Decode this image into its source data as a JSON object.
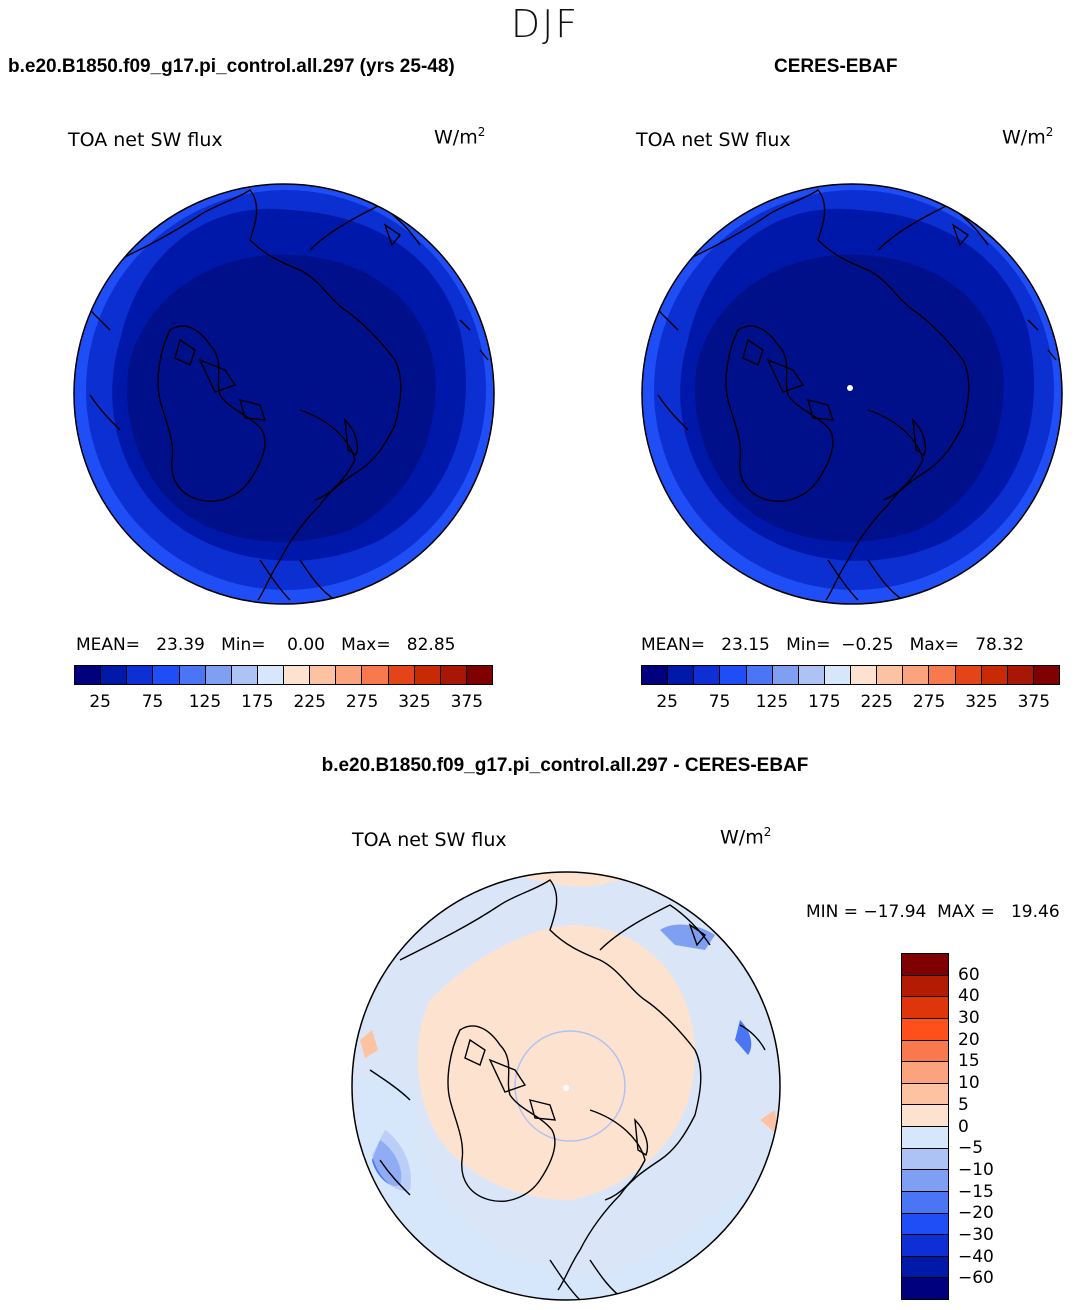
{
  "season": "DJF",
  "panels": {
    "model": {
      "case_title": "b.e20.B1850.f09_g17.pi_control.all.297 (yrs 25-48)",
      "variable": "TOA net SW flux",
      "units_base": "W/m",
      "units_exp": "2",
      "stats": "MEAN=   23.39   Min=    0.00   Max=   82.85"
    },
    "obs": {
      "case_title": "CERES-EBAF",
      "variable": "TOA net SW flux",
      "units_base": "W/m",
      "units_exp": "2",
      "stats": "MEAN=   23.15   Min=  −0.25   Max=   78.32"
    },
    "diff": {
      "case_title": "b.e20.B1850.f09_g17.pi_control.all.297 - CERES-EBAF",
      "variable": "TOA net SW flux",
      "units_base": "W/m",
      "units_exp": "2",
      "stats": "MIN = −17.94  MAX =   19.46"
    }
  },
  "colorbar_abs": {
    "colors": [
      "#00007f",
      "#0019a8",
      "#0d2fd4",
      "#1f4ef7",
      "#4a76f5",
      "#7e9ff2",
      "#aec3f5",
      "#d6e6fb",
      "#fde3cf",
      "#fcc2a2",
      "#fba37c",
      "#f7794c",
      "#e34418",
      "#c72a05",
      "#a81705",
      "#7f0000"
    ],
    "labels": [
      "25",
      "75",
      "125",
      "175",
      "225",
      "275",
      "325",
      "375"
    ]
  },
  "colorbar_diff": {
    "colors": [
      "#7f0000",
      "#b31b03",
      "#e0340a",
      "#ff4f1a",
      "#f7794c",
      "#fba37c",
      "#fcc2a2",
      "#fde3cf",
      "#d6e6fb",
      "#aec3f5",
      "#7e9ff2",
      "#4a76f5",
      "#1f4ef7",
      "#0d2fd4",
      "#0019a8",
      "#00007f"
    ],
    "labels": [
      "60",
      "40",
      "30",
      "20",
      "15",
      "10",
      "5",
      "0",
      "−5",
      "−10",
      "−15",
      "−20",
      "−30",
      "−40",
      "−60"
    ]
  },
  "map_colors": {
    "abs_inner": "#00108a",
    "abs_mid": "#0018aa",
    "abs_outer": "#0c2fd2",
    "abs_edge": "#1f4ef7",
    "diff_base": "#fde3cf",
    "diff_neg": "#d6e6fb",
    "diff_neg2": "#aec3f5",
    "diff_neg3": "#4a76f5",
    "diff_pos2": "#fcc2a2"
  }
}
